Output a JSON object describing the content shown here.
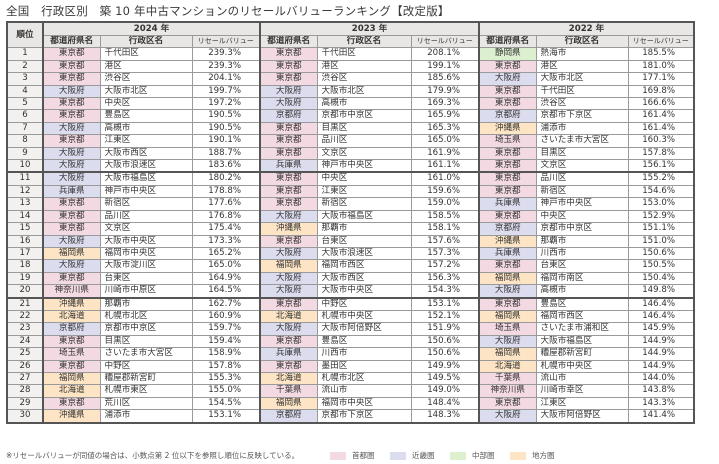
{
  "title": "全国　行政区別　築 10 年中古マンションのリセールバリューランキング【改定版】",
  "headers": {
    "rank": "順位",
    "pref": "都道府県名",
    "city": "行政区名",
    "value": "リセールバリュー",
    "years": [
      "2024 年",
      "2023 年",
      "2022 年"
    ]
  },
  "region_colors": {
    "shuto": "#f3d9e1",
    "kinki": "#dcdcef",
    "chubu": "#dcefcf",
    "chiho": "#fde4c4"
  },
  "rows": [
    {
      "rank": "1",
      "y2024": {
        "pref": "東京都",
        "region": "shuto",
        "city": "千代田区",
        "value": "239.3%"
      },
      "y2023": {
        "pref": "東京都",
        "region": "shuto",
        "city": "千代田区",
        "value": "208.1%"
      },
      "y2022": {
        "pref": "静岡県",
        "region": "chubu",
        "city": "熱海市",
        "value": "185.5%"
      }
    },
    {
      "rank": "2",
      "y2024": {
        "pref": "東京都",
        "region": "shuto",
        "city": "港区",
        "value": "239.3%"
      },
      "y2023": {
        "pref": "東京都",
        "region": "shuto",
        "city": "港区",
        "value": "199.1%"
      },
      "y2022": {
        "pref": "東京都",
        "region": "shuto",
        "city": "港区",
        "value": "181.0%"
      }
    },
    {
      "rank": "3",
      "y2024": {
        "pref": "東京都",
        "region": "shuto",
        "city": "渋谷区",
        "value": "204.1%"
      },
      "y2023": {
        "pref": "東京都",
        "region": "shuto",
        "city": "渋谷区",
        "value": "185.6%"
      },
      "y2022": {
        "pref": "大阪府",
        "region": "kinki",
        "city": "大阪市北区",
        "value": "177.1%"
      }
    },
    {
      "rank": "4",
      "y2024": {
        "pref": "大阪府",
        "region": "kinki",
        "city": "大阪市北区",
        "value": "199.7%"
      },
      "y2023": {
        "pref": "大阪府",
        "region": "kinki",
        "city": "大阪市北区",
        "value": "179.9%"
      },
      "y2022": {
        "pref": "東京都",
        "region": "shuto",
        "city": "千代田区",
        "value": "169.8%"
      }
    },
    {
      "rank": "5",
      "y2024": {
        "pref": "東京都",
        "region": "shuto",
        "city": "中央区",
        "value": "197.2%"
      },
      "y2023": {
        "pref": "大阪府",
        "region": "kinki",
        "city": "高槻市",
        "value": "169.3%"
      },
      "y2022": {
        "pref": "東京都",
        "region": "shuto",
        "city": "渋谷区",
        "value": "166.6%"
      }
    },
    {
      "rank": "6",
      "y2024": {
        "pref": "東京都",
        "region": "shuto",
        "city": "豊島区",
        "value": "190.5%"
      },
      "y2023": {
        "pref": "京都府",
        "region": "kinki",
        "city": "京都市中京区",
        "value": "165.9%"
      },
      "y2022": {
        "pref": "京都府",
        "region": "kinki",
        "city": "京都市下京区",
        "value": "161.4%"
      }
    },
    {
      "rank": "7",
      "y2024": {
        "pref": "大阪府",
        "region": "kinki",
        "city": "高槻市",
        "value": "190.5%"
      },
      "y2023": {
        "pref": "東京都",
        "region": "shuto",
        "city": "目黒区",
        "value": "165.3%"
      },
      "y2022": {
        "pref": "沖縄県",
        "region": "chiho",
        "city": "浦添市",
        "value": "161.4%"
      }
    },
    {
      "rank": "8",
      "y2024": {
        "pref": "東京都",
        "region": "shuto",
        "city": "江東区",
        "value": "190.1%"
      },
      "y2023": {
        "pref": "東京都",
        "region": "shuto",
        "city": "品川区",
        "value": "165.0%"
      },
      "y2022": {
        "pref": "埼玉県",
        "region": "shuto",
        "city": "さいたま市大宮区",
        "value": "160.3%"
      }
    },
    {
      "rank": "9",
      "y2024": {
        "pref": "大阪府",
        "region": "kinki",
        "city": "大阪市西区",
        "value": "188.7%"
      },
      "y2023": {
        "pref": "東京都",
        "region": "shuto",
        "city": "文京区",
        "value": "161.9%"
      },
      "y2022": {
        "pref": "東京都",
        "region": "shuto",
        "city": "目黒区",
        "value": "157.8%"
      }
    },
    {
      "rank": "10",
      "y2024": {
        "pref": "大阪府",
        "region": "kinki",
        "city": "大阪市浪速区",
        "value": "183.6%"
      },
      "y2023": {
        "pref": "兵庫県",
        "region": "kinki",
        "city": "神戸市中央区",
        "value": "161.1%"
      },
      "y2022": {
        "pref": "東京都",
        "region": "shuto",
        "city": "文京区",
        "value": "156.1%"
      }
    },
    {
      "rank": "11",
      "y2024": {
        "pref": "大阪府",
        "region": "kinki",
        "city": "大阪市福島区",
        "value": "180.2%"
      },
      "y2023": {
        "pref": "東京都",
        "region": "shuto",
        "city": "中央区",
        "value": "161.0%"
      },
      "y2022": {
        "pref": "東京都",
        "region": "shuto",
        "city": "品川区",
        "value": "155.2%"
      }
    },
    {
      "rank": "12",
      "y2024": {
        "pref": "兵庫県",
        "region": "kinki",
        "city": "神戸市中央区",
        "value": "178.8%"
      },
      "y2023": {
        "pref": "東京都",
        "region": "shuto",
        "city": "江東区",
        "value": "159.6%"
      },
      "y2022": {
        "pref": "東京都",
        "region": "shuto",
        "city": "新宿区",
        "value": "154.6%"
      }
    },
    {
      "rank": "13",
      "y2024": {
        "pref": "東京都",
        "region": "shuto",
        "city": "新宿区",
        "value": "177.6%"
      },
      "y2023": {
        "pref": "東京都",
        "region": "shuto",
        "city": "新宿区",
        "value": "159.0%"
      },
      "y2022": {
        "pref": "兵庫県",
        "region": "kinki",
        "city": "神戸市中央区",
        "value": "153.0%"
      }
    },
    {
      "rank": "14",
      "y2024": {
        "pref": "東京都",
        "region": "shuto",
        "city": "品川区",
        "value": "176.8%"
      },
      "y2023": {
        "pref": "大阪府",
        "region": "kinki",
        "city": "大阪市福島区",
        "value": "158.5%"
      },
      "y2022": {
        "pref": "東京都",
        "region": "shuto",
        "city": "中央区",
        "value": "152.9%"
      }
    },
    {
      "rank": "15",
      "y2024": {
        "pref": "東京都",
        "region": "shuto",
        "city": "文京区",
        "value": "175.4%"
      },
      "y2023": {
        "pref": "沖縄県",
        "region": "chiho",
        "city": "那覇市",
        "value": "158.1%"
      },
      "y2022": {
        "pref": "京都府",
        "region": "kinki",
        "city": "京都市中京区",
        "value": "151.1%"
      }
    },
    {
      "rank": "16",
      "y2024": {
        "pref": "大阪府",
        "region": "kinki",
        "city": "大阪市中央区",
        "value": "173.3%"
      },
      "y2023": {
        "pref": "東京都",
        "region": "shuto",
        "city": "台東区",
        "value": "157.6%"
      },
      "y2022": {
        "pref": "沖縄県",
        "region": "chiho",
        "city": "那覇市",
        "value": "151.0%"
      }
    },
    {
      "rank": "17",
      "y2024": {
        "pref": "福岡県",
        "region": "chiho",
        "city": "福岡市中央区",
        "value": "165.2%"
      },
      "y2023": {
        "pref": "大阪府",
        "region": "kinki",
        "city": "大阪市浪速区",
        "value": "157.3%"
      },
      "y2022": {
        "pref": "兵庫県",
        "region": "kinki",
        "city": "川西市",
        "value": "150.6%"
      }
    },
    {
      "rank": "18",
      "y2024": {
        "pref": "大阪府",
        "region": "kinki",
        "city": "大阪市淀川区",
        "value": "165.0%"
      },
      "y2023": {
        "pref": "福岡県",
        "region": "chiho",
        "city": "福岡市西区",
        "value": "157.2%"
      },
      "y2022": {
        "pref": "東京都",
        "region": "shuto",
        "city": "台東区",
        "value": "150.5%"
      }
    },
    {
      "rank": "19",
      "y2024": {
        "pref": "東京都",
        "region": "shuto",
        "city": "台東区",
        "value": "164.9%"
      },
      "y2023": {
        "pref": "大阪府",
        "region": "kinki",
        "city": "大阪市西区",
        "value": "156.3%"
      },
      "y2022": {
        "pref": "福岡県",
        "region": "chiho",
        "city": "福岡市南区",
        "value": "150.4%"
      }
    },
    {
      "rank": "20",
      "y2024": {
        "pref": "神奈川県",
        "region": "shuto",
        "city": "川崎市中原区",
        "value": "164.5%"
      },
      "y2023": {
        "pref": "大阪府",
        "region": "kinki",
        "city": "大阪市中央区",
        "value": "154.3%"
      },
      "y2022": {
        "pref": "大阪府",
        "region": "kinki",
        "city": "高槻市",
        "value": "149.8%"
      }
    },
    {
      "rank": "21",
      "y2024": {
        "pref": "沖縄県",
        "region": "chiho",
        "city": "那覇市",
        "value": "162.7%"
      },
      "y2023": {
        "pref": "東京都",
        "region": "shuto",
        "city": "中野区",
        "value": "153.1%"
      },
      "y2022": {
        "pref": "東京都",
        "region": "shuto",
        "city": "豊島区",
        "value": "146.4%"
      }
    },
    {
      "rank": "22",
      "y2024": {
        "pref": "北海道",
        "region": "chiho",
        "city": "札幌市北区",
        "value": "160.9%"
      },
      "y2023": {
        "pref": "北海道",
        "region": "chiho",
        "city": "札幌市中央区",
        "value": "152.1%"
      },
      "y2022": {
        "pref": "福岡県",
        "region": "chiho",
        "city": "福岡市西区",
        "value": "146.4%"
      }
    },
    {
      "rank": "23",
      "y2024": {
        "pref": "京都府",
        "region": "kinki",
        "city": "京都市中京区",
        "value": "159.7%"
      },
      "y2023": {
        "pref": "大阪府",
        "region": "kinki",
        "city": "大阪市阿倍野区",
        "value": "151.9%"
      },
      "y2022": {
        "pref": "埼玉県",
        "region": "shuto",
        "city": "さいたま市浦和区",
        "value": "145.9%"
      }
    },
    {
      "rank": "24",
      "y2024": {
        "pref": "東京都",
        "region": "shuto",
        "city": "目黒区",
        "value": "159.4%"
      },
      "y2023": {
        "pref": "東京都",
        "region": "shuto",
        "city": "豊島区",
        "value": "150.6%"
      },
      "y2022": {
        "pref": "大阪府",
        "region": "kinki",
        "city": "大阪市福島区",
        "value": "144.9%"
      }
    },
    {
      "rank": "25",
      "y2024": {
        "pref": "埼玉県",
        "region": "shuto",
        "city": "さいたま市大宮区",
        "value": "158.9%"
      },
      "y2023": {
        "pref": "兵庫県",
        "region": "kinki",
        "city": "川西市",
        "value": "150.6%"
      },
      "y2022": {
        "pref": "福岡県",
        "region": "chiho",
        "city": "糟屋郡新宮町",
        "value": "144.9%"
      }
    },
    {
      "rank": "26",
      "y2024": {
        "pref": "東京都",
        "region": "shuto",
        "city": "中野区",
        "value": "157.8%"
      },
      "y2023": {
        "pref": "東京都",
        "region": "shuto",
        "city": "墨田区",
        "value": "149.9%"
      },
      "y2022": {
        "pref": "北海道",
        "region": "chiho",
        "city": "札幌市中央区",
        "value": "144.9%"
      }
    },
    {
      "rank": "27",
      "y2024": {
        "pref": "福岡県",
        "region": "chiho",
        "city": "糟屋郡新宮町",
        "value": "155.3%"
      },
      "y2023": {
        "pref": "北海道",
        "region": "chiho",
        "city": "札幌市北区",
        "value": "149.5%"
      },
      "y2022": {
        "pref": "千葉県",
        "region": "shuto",
        "city": "流山市",
        "value": "144.0%"
      }
    },
    {
      "rank": "28",
      "y2024": {
        "pref": "北海道",
        "region": "chiho",
        "city": "札幌市東区",
        "value": "155.0%"
      },
      "y2023": {
        "pref": "千葉県",
        "region": "shuto",
        "city": "流山市",
        "value": "149.0%"
      },
      "y2022": {
        "pref": "神奈川県",
        "region": "shuto",
        "city": "川崎市幸区",
        "value": "143.8%"
      }
    },
    {
      "rank": "29",
      "y2024": {
        "pref": "東京都",
        "region": "shuto",
        "city": "荒川区",
        "value": "154.5%"
      },
      "y2023": {
        "pref": "福岡県",
        "region": "chiho",
        "city": "福岡市中央区",
        "value": "148.4%"
      },
      "y2022": {
        "pref": "東京都",
        "region": "shuto",
        "city": "江東区",
        "value": "143.3%"
      }
    },
    {
      "rank": "30",
      "y2024": {
        "pref": "沖縄県",
        "region": "chiho",
        "city": "浦添市",
        "value": "153.1%"
      },
      "y2023": {
        "pref": "京都府",
        "region": "kinki",
        "city": "京都市下京区",
        "value": "148.3%"
      },
      "y2022": {
        "pref": "大阪府",
        "region": "kinki",
        "city": "大阪市阿倍野区",
        "value": "141.4%"
      }
    }
  ],
  "footnote": "※リセールバリューが同値の場合は、小数点第 2 位以下を参照し順位に反映している。",
  "legend": [
    {
      "key": "shuto",
      "label": "首都圏"
    },
    {
      "key": "kinki",
      "label": "近畿圏"
    },
    {
      "key": "chubu",
      "label": "中部圏"
    },
    {
      "key": "chiho",
      "label": "地方圏"
    }
  ]
}
